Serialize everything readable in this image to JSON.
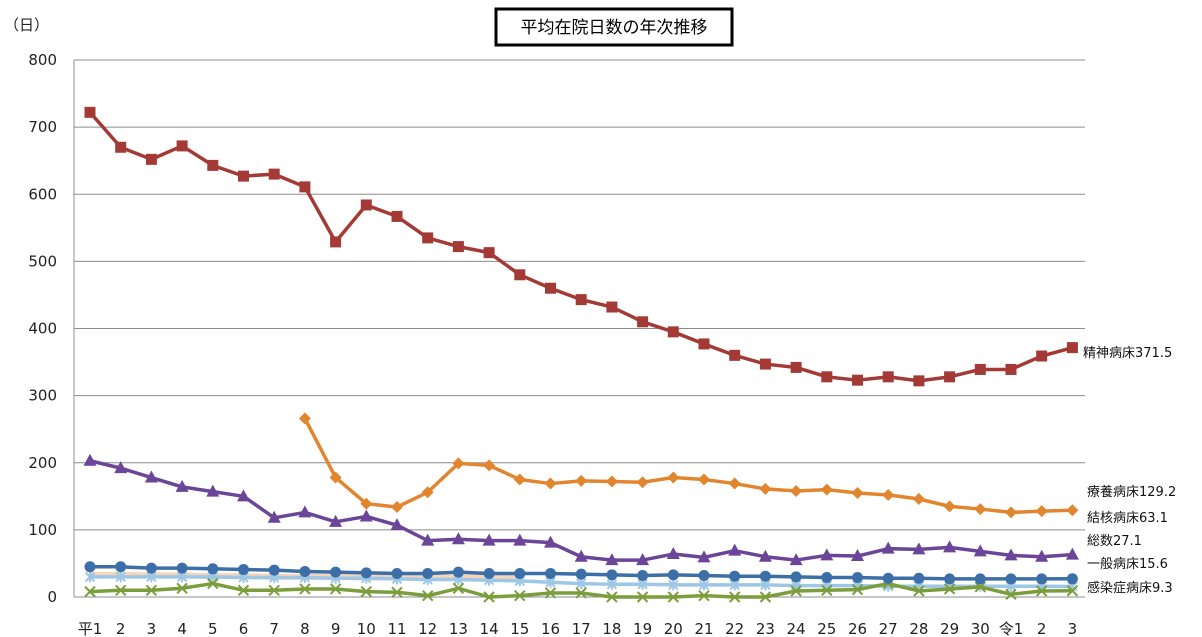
{
  "chart_data": {
    "type": "line",
    "title": "平均在院日数の年次推移",
    "ylabel": "（日）",
    "ylim": [
      0,
      800
    ],
    "yticks": [
      "0",
      "100",
      "200",
      "300",
      "400",
      "500",
      "600",
      "700",
      "800"
    ],
    "categories": [
      "平1",
      "2",
      "3",
      "4",
      "5",
      "6",
      "7",
      "8",
      "9",
      "10",
      "11",
      "12",
      "13",
      "14",
      "15",
      "16",
      "17",
      "18",
      "19",
      "20",
      "21",
      "22",
      "23",
      "24",
      "25",
      "26",
      "27",
      "28",
      "29",
      "30",
      "令1",
      "2",
      "3"
    ],
    "grid": true,
    "series": [
      {
        "name": "精神病床",
        "end_label": "精神病床371.5",
        "color": "#a33a36",
        "marker": "square",
        "values": [
          722,
          670,
          652,
          672,
          643,
          627,
          630,
          611,
          529,
          584,
          567,
          535,
          522,
          513,
          480,
          460,
          443,
          432,
          410,
          395,
          377,
          360,
          347,
          342,
          328,
          323,
          328,
          322,
          328,
          339,
          339,
          359,
          371.5
        ]
      },
      {
        "name": "療養病床",
        "end_label": "療養病床129.2",
        "color": "#e1852e",
        "marker": "diamond",
        "values": [
          null,
          null,
          null,
          null,
          null,
          null,
          null,
          266,
          178,
          139,
          134,
          156,
          199,
          196,
          175,
          169,
          173,
          172,
          171,
          178,
          175,
          169,
          161,
          158,
          160,
          155,
          152,
          146,
          135,
          131,
          126,
          128,
          129.2
        ]
      },
      {
        "name": "結核病床",
        "end_label": "結核病床63.1",
        "color": "#6b4597",
        "marker": "triangle",
        "values": [
          203,
          192,
          178,
          164,
          157,
          150,
          118,
          126,
          112,
          120,
          107,
          84,
          86,
          84,
          84,
          81,
          60,
          55,
          55,
          64,
          59,
          69,
          60,
          55,
          62,
          61,
          72,
          71,
          74,
          68,
          62,
          60,
          63.1
        ]
      },
      {
        "name": "総数",
        "end_label": "総数27.1",
        "color": "#3c6ea8",
        "marker": "circle",
        "values": [
          45,
          45,
          43,
          43,
          42,
          41,
          40,
          38,
          37,
          36,
          35,
          35,
          37,
          35,
          35,
          35,
          34,
          33,
          32,
          33,
          32,
          31,
          31,
          30,
          29,
          29,
          28,
          28,
          27,
          27,
          27,
          27,
          27.1
        ]
      },
      {
        "name": "一般病床",
        "end_label": "一般病床15.6",
        "color": "#9ec7e6",
        "marker": "star",
        "values": [
          30,
          30,
          30,
          30,
          30,
          29,
          29,
          29,
          28,
          28,
          27,
          26,
          26,
          25,
          24,
          22,
          20,
          19,
          19,
          18,
          18,
          18,
          18,
          17,
          17,
          17,
          16,
          16,
          16,
          16,
          16,
          16,
          15.6
        ]
      },
      {
        "name": "感染症病床",
        "end_label": "感染症病床9.3",
        "color": "#7c9d3b",
        "marker": "x",
        "values": [
          8,
          10,
          10,
          13,
          20,
          10,
          10,
          12,
          12,
          8,
          7,
          2,
          13,
          0,
          2,
          6,
          6,
          0,
          0,
          0,
          2,
          0,
          0,
          9,
          10,
          11,
          20,
          9,
          12,
          15,
          4,
          9,
          9.3
        ]
      }
    ],
    "faint_band": {
      "color": "#f3c9a6",
      "values": [
        33,
        33,
        32,
        32,
        31,
        31,
        30,
        30,
        30,
        29,
        29,
        29,
        29,
        29,
        29
      ]
    }
  }
}
